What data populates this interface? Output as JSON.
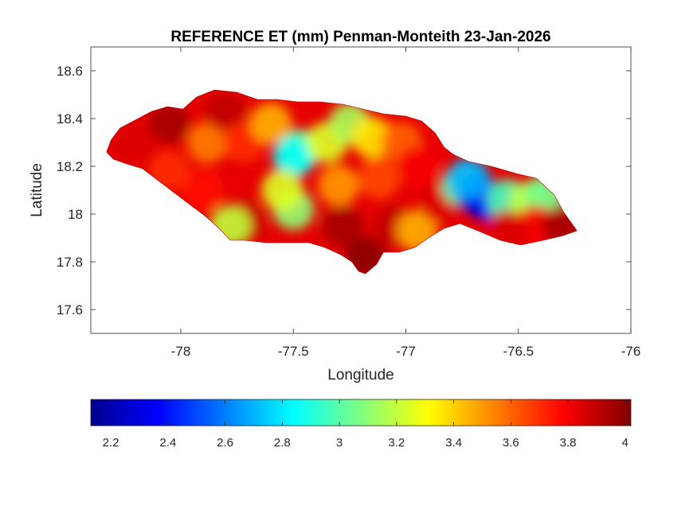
{
  "chart_data": {
    "type": "heatmap",
    "title": "REFERENCE ET (mm) Penman-Monteith 23-Jan-2026",
    "xlabel": "Longitude",
    "ylabel": "Latitude",
    "xlim": [
      -78.4,
      -76
    ],
    "ylim": [
      17.5,
      18.7
    ],
    "x_ticks": [
      -78,
      -77.5,
      -77,
      -76.5,
      -76
    ],
    "x_tick_labels": [
      "-78",
      "-77.5",
      "-77",
      "-76.5",
      "-76"
    ],
    "y_ticks": [
      17.6,
      17.8,
      18,
      18.2,
      18.4,
      18.6
    ],
    "y_tick_labels": [
      "17.6",
      "17.8",
      "18",
      "18.2",
      "18.4",
      "18.6"
    ],
    "colorbar": {
      "colormap": "jet",
      "range": [
        2.13,
        4.02
      ],
      "ticks": [
        2.2,
        2.4,
        2.6,
        2.8,
        3,
        3.2,
        3.4,
        3.6,
        3.8,
        4
      ],
      "tick_labels": [
        "2.2",
        "2.4",
        "2.6",
        "2.8",
        "3",
        "3.2",
        "3.4",
        "3.6",
        "3.8",
        "4"
      ]
    },
    "grid": false,
    "region_outline": [
      [
        -78.33,
        18.26
      ],
      [
        -78.31,
        18.31
      ],
      [
        -78.27,
        18.36
      ],
      [
        -78.21,
        18.39
      ],
      [
        -78.13,
        18.43
      ],
      [
        -78.06,
        18.45
      ],
      [
        -77.99,
        18.44
      ],
      [
        -77.93,
        18.49
      ],
      [
        -77.85,
        18.52
      ],
      [
        -77.75,
        18.51
      ],
      [
        -77.66,
        18.48
      ],
      [
        -77.57,
        18.48
      ],
      [
        -77.48,
        18.47
      ],
      [
        -77.38,
        18.47
      ],
      [
        -77.28,
        18.46
      ],
      [
        -77.19,
        18.44
      ],
      [
        -77.1,
        18.42
      ],
      [
        -77.0,
        18.41
      ],
      [
        -76.93,
        18.39
      ],
      [
        -76.87,
        18.34
      ],
      [
        -76.83,
        18.28
      ],
      [
        -76.79,
        18.25
      ],
      [
        -76.72,
        18.22
      ],
      [
        -76.62,
        18.2
      ],
      [
        -76.51,
        18.17
      ],
      [
        -76.42,
        18.15
      ],
      [
        -76.34,
        18.08
      ],
      [
        -76.3,
        18.01
      ],
      [
        -76.24,
        17.93
      ],
      [
        -76.3,
        17.91
      ],
      [
        -76.39,
        17.89
      ],
      [
        -76.49,
        17.87
      ],
      [
        -76.58,
        17.89
      ],
      [
        -76.68,
        17.93
      ],
      [
        -76.76,
        17.96
      ],
      [
        -76.83,
        17.94
      ],
      [
        -76.9,
        17.9
      ],
      [
        -76.96,
        17.86
      ],
      [
        -77.03,
        17.84
      ],
      [
        -77.1,
        17.84
      ],
      [
        -77.13,
        17.79
      ],
      [
        -77.18,
        17.75
      ],
      [
        -77.21,
        17.76
      ],
      [
        -77.24,
        17.8
      ],
      [
        -77.29,
        17.83
      ],
      [
        -77.36,
        17.86
      ],
      [
        -77.43,
        17.88
      ],
      [
        -77.52,
        17.88
      ],
      [
        -77.62,
        17.88
      ],
      [
        -77.72,
        17.89
      ],
      [
        -77.78,
        17.89
      ],
      [
        -77.83,
        17.94
      ],
      [
        -77.89,
        17.99
      ],
      [
        -77.96,
        18.04
      ],
      [
        -78.03,
        18.09
      ],
      [
        -78.1,
        18.14
      ],
      [
        -78.17,
        18.19
      ],
      [
        -78.24,
        18.21
      ],
      [
        -78.3,
        18.23
      ]
    ],
    "et_zones": [
      {
        "lon": -78.22,
        "lat": 18.3,
        "value": 3.85
      },
      {
        "lon": -78.05,
        "lat": 18.38,
        "value": 3.95
      },
      {
        "lon": -77.88,
        "lat": 18.3,
        "value": 3.55
      },
      {
        "lon": -77.8,
        "lat": 18.43,
        "value": 3.9
      },
      {
        "lon": -77.72,
        "lat": 18.3,
        "value": 3.7
      },
      {
        "lon": -77.6,
        "lat": 18.38,
        "value": 3.45
      },
      {
        "lon": -77.47,
        "lat": 18.27,
        "value": 3.05
      },
      {
        "lon": -77.5,
        "lat": 18.24,
        "value": 2.85
      },
      {
        "lon": -77.35,
        "lat": 18.3,
        "value": 3.25
      },
      {
        "lon": -77.25,
        "lat": 18.38,
        "value": 3.15
      },
      {
        "lon": -77.15,
        "lat": 18.32,
        "value": 3.35
      },
      {
        "lon": -77.02,
        "lat": 18.3,
        "value": 3.6
      },
      {
        "lon": -76.95,
        "lat": 18.2,
        "value": 3.8
      },
      {
        "lon": -77.12,
        "lat": 18.15,
        "value": 3.65
      },
      {
        "lon": -77.3,
        "lat": 18.12,
        "value": 3.5
      },
      {
        "lon": -77.5,
        "lat": 18.02,
        "value": 3.1
      },
      {
        "lon": -77.55,
        "lat": 18.1,
        "value": 3.25
      },
      {
        "lon": -77.72,
        "lat": 17.97,
        "value": 3.9
      },
      {
        "lon": -77.78,
        "lat": 17.95,
        "value": 3.2
      },
      {
        "lon": -77.9,
        "lat": 18.1,
        "value": 3.75
      },
      {
        "lon": -78.05,
        "lat": 18.18,
        "value": 3.7
      },
      {
        "lon": -77.28,
        "lat": 17.95,
        "value": 3.95
      },
      {
        "lon": -77.18,
        "lat": 17.82,
        "value": 4.0
      },
      {
        "lon": -77.05,
        "lat": 17.95,
        "value": 3.9
      },
      {
        "lon": -76.95,
        "lat": 17.93,
        "value": 3.45
      },
      {
        "lon": -76.85,
        "lat": 18.05,
        "value": 3.85
      },
      {
        "lon": -76.75,
        "lat": 18.12,
        "value": 3.0
      },
      {
        "lon": -76.68,
        "lat": 18.08,
        "value": 2.3
      },
      {
        "lon": -76.62,
        "lat": 18.05,
        "value": 2.35
      },
      {
        "lon": -76.72,
        "lat": 18.15,
        "value": 2.7
      },
      {
        "lon": -76.55,
        "lat": 18.06,
        "value": 3.0
      },
      {
        "lon": -76.45,
        "lat": 18.05,
        "value": 3.2
      },
      {
        "lon": -76.38,
        "lat": 18.08,
        "value": 3.05
      },
      {
        "lon": -76.42,
        "lat": 17.95,
        "value": 3.8
      },
      {
        "lon": -76.55,
        "lat": 17.93,
        "value": 3.85
      },
      {
        "lon": -76.3,
        "lat": 17.95,
        "value": 3.95
      }
    ]
  }
}
